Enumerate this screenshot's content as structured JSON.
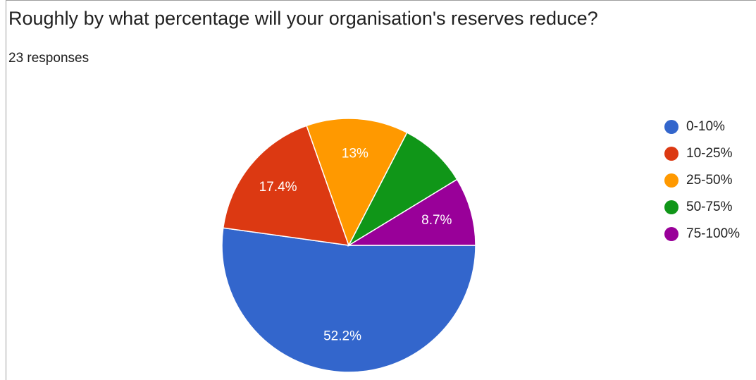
{
  "chart_data": {
    "type": "pie",
    "title": "Roughly by what percentage will your organisation's reserves reduce?",
    "subtitle": "23 responses",
    "categories": [
      "0-10%",
      "10-25%",
      "25-50%",
      "50-75%",
      "75-100%"
    ],
    "values": [
      52.2,
      17.4,
      13,
      8.7,
      8.7
    ],
    "value_labels": [
      "52.2%",
      "17.4%",
      "13%",
      null,
      "8.7%"
    ],
    "colors": [
      "#3366cc",
      "#dc3912",
      "#ff9900",
      "#109618",
      "#990099"
    ],
    "legend": "right"
  }
}
